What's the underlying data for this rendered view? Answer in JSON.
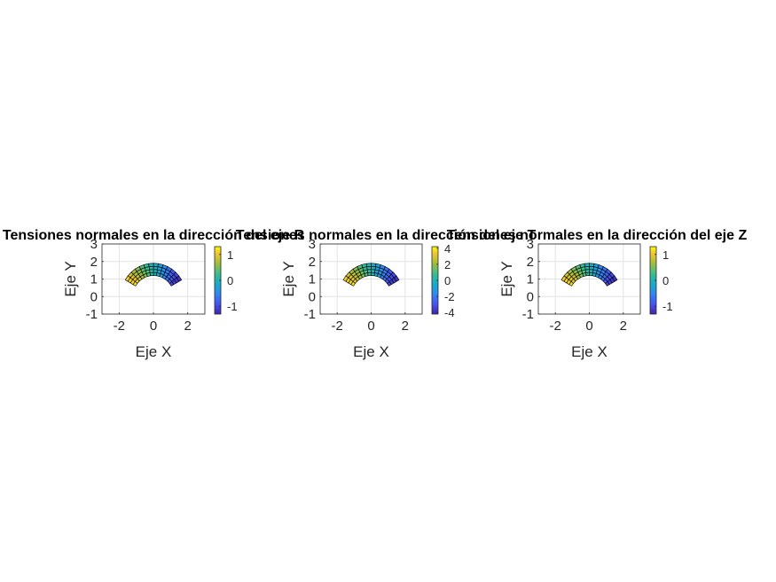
{
  "chart_data": [
    {
      "type": "heatmap",
      "title": "Tensiones normales en la dirección del eje R",
      "xlabel": "Eje X",
      "ylabel": "Eje Y",
      "xlim": [
        -3,
        3
      ],
      "ylim": [
        -1,
        3
      ],
      "xticks": [
        "-2",
        "0",
        "2"
      ],
      "yticks": [
        "-1",
        "0",
        "1",
        "2",
        "3"
      ],
      "grid": true,
      "colormap": "parula",
      "colorbar": {
        "range": [
          -1.3,
          1.3
        ],
        "ticks": [
          "-1",
          "0",
          "1"
        ]
      },
      "mesh": {
        "shape": "half-annulus sector",
        "r_inner": 1.2,
        "r_outer": 1.9,
        "theta_deg": [
          30,
          150
        ],
        "radial_divisions": 4,
        "angular_divisions": 14
      },
      "field": "theta_gradient"
    },
    {
      "type": "heatmap",
      "title": "Tensiones normales en la dirección del eje T",
      "xlabel": "Eje X",
      "ylabel": "Eje Y",
      "xlim": [
        -3,
        3
      ],
      "ylim": [
        -1,
        3
      ],
      "xticks": [
        "-2",
        "0",
        "2"
      ],
      "yticks": [
        "-1",
        "0",
        "1",
        "2",
        "3"
      ],
      "grid": true,
      "colormap": "parula",
      "colorbar": {
        "range": [
          -4.2,
          4.2
        ],
        "ticks": [
          "-4",
          "-2",
          "0",
          "2",
          "4"
        ]
      },
      "mesh": {
        "shape": "half-annulus sector",
        "r_inner": 1.2,
        "r_outer": 1.9,
        "theta_deg": [
          30,
          150
        ],
        "radial_divisions": 4,
        "angular_divisions": 14
      },
      "field": "theta_gradient"
    },
    {
      "type": "heatmap",
      "title": "Tensiones normales en la dirección del eje Z",
      "xlabel": "Eje X",
      "ylabel": "Eje Y",
      "xlim": [
        -3,
        3
      ],
      "ylim": [
        -1,
        3
      ],
      "xticks": [
        "-2",
        "0",
        "2"
      ],
      "yticks": [
        "-1",
        "0",
        "1",
        "2",
        "3"
      ],
      "grid": true,
      "colormap": "parula",
      "colorbar": {
        "range": [
          -1.3,
          1.3
        ],
        "ticks": [
          "-1",
          "0",
          "1"
        ]
      },
      "mesh": {
        "shape": "half-annulus sector",
        "r_inner": 1.2,
        "r_outer": 1.9,
        "theta_deg": [
          30,
          150
        ],
        "radial_divisions": 4,
        "angular_divisions": 14
      },
      "field": "theta_gradient"
    }
  ]
}
